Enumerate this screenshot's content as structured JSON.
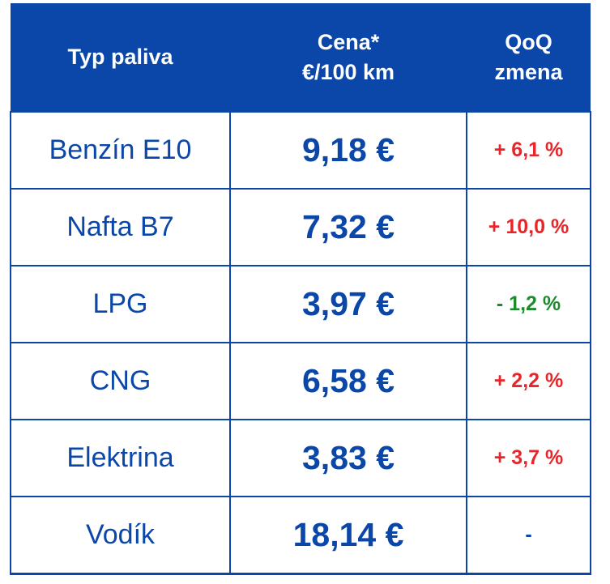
{
  "header": {
    "col_fuel": "Typ paliva",
    "col_price_line1": "Cena*",
    "col_price_line2": "€/100 km",
    "col_change_line1": "QoQ",
    "col_change_line2": "zmena"
  },
  "colors": {
    "brand_blue": "#0b47a9",
    "increase_red": "#e8262a",
    "decrease_green": "#1e8a2e",
    "neutral": "#0b47a9"
  },
  "rows": [
    {
      "fuel": "Benzín E10",
      "price": "9,18 €",
      "change": "+ 6,1 %",
      "trend": "up"
    },
    {
      "fuel": "Nafta B7",
      "price": "7,32 €",
      "change": "+ 10,0 %",
      "trend": "up"
    },
    {
      "fuel": "LPG",
      "price": "3,97 €",
      "change": "- 1,2 %",
      "trend": "down"
    },
    {
      "fuel": "CNG",
      "price": "6,58 €",
      "change": "+ 2,2 %",
      "trend": "up"
    },
    {
      "fuel": "Elektrina",
      "price": "3,83 €",
      "change": "+ 3,7 %",
      "trend": "up"
    },
    {
      "fuel": "Vodík",
      "price": "18,14 €",
      "change": "-",
      "trend": "none"
    }
  ]
}
